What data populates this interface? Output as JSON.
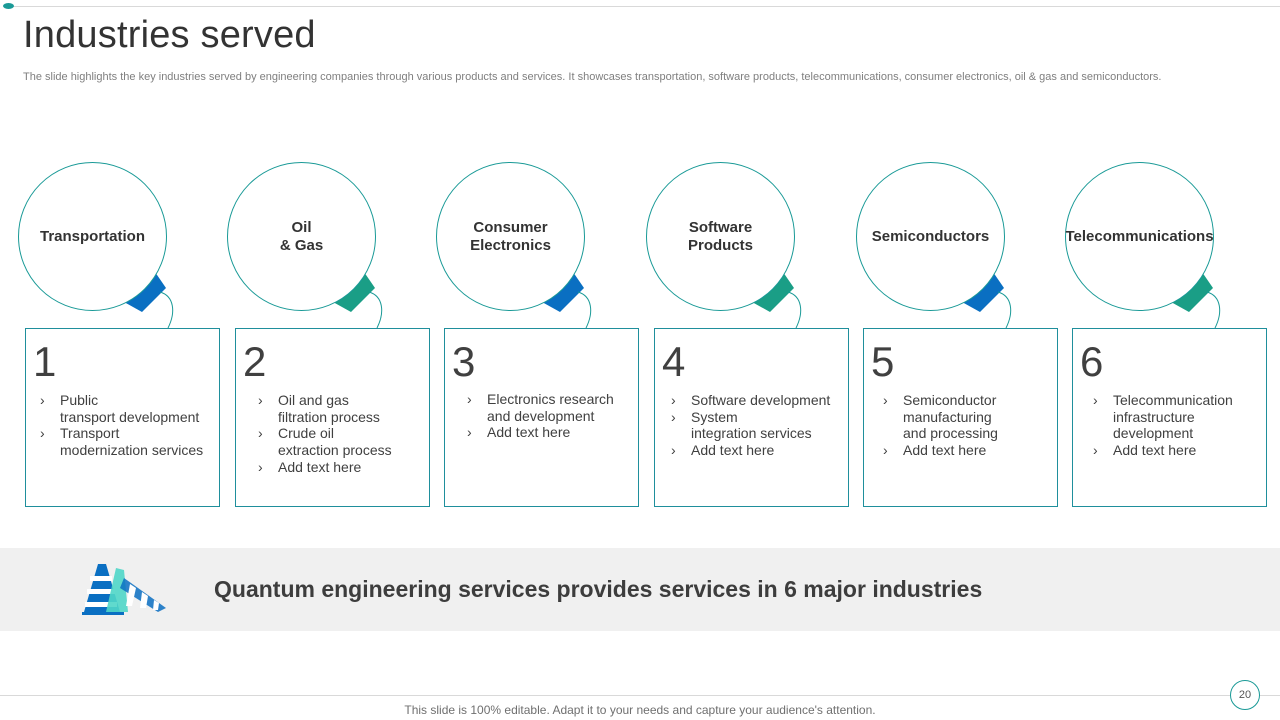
{
  "slide": {
    "title": "Industries served",
    "subtitle": "The slide highlights the key industries served by engineering companies through various products and services. It showcases transportation, software products, telecommunications, consumer electronics, oil & gas and semiconductors."
  },
  "industries": [
    {
      "label": "Transportation",
      "number": "1",
      "points": [
        "Public\ntransport development",
        "Transport\nmodernization services"
      ]
    },
    {
      "label": "Oil\n& Gas",
      "number": "2",
      "points": [
        "Oil and gas\nfiltration process",
        "Crude oil\nextraction process",
        "Add text here"
      ]
    },
    {
      "label": "Consumer\nElectronics",
      "number": "3",
      "points": [
        "Electronics research\nand development",
        "Add text here"
      ]
    },
    {
      "label": "Software\nProducts",
      "number": "4",
      "points": [
        "Software development",
        "System\nintegration services",
        "Add text here"
      ]
    },
    {
      "label": "Semiconductors",
      "number": "5",
      "points": [
        "Semiconductor\nmanufacturing\nand processing",
        "Add text here"
      ]
    },
    {
      "label": "Telecommunications",
      "number": "6",
      "points": [
        "Telecommunication\ninfrastructure\ndevelopment",
        "Add text here"
      ]
    }
  ],
  "banner": {
    "text": "Quantum engineering services provides services  in 6 major industries",
    "icon": "traffic-cone-icon"
  },
  "footer": {
    "text": "This slide is 100% editable. Adapt it to your needs and capture your audience's attention.",
    "page_number": "20"
  },
  "colors": {
    "teal": "#1a9a97",
    "blue": "#0a6fc2",
    "green": "#1a9e86",
    "banner_bg": "#f0f0f0"
  }
}
